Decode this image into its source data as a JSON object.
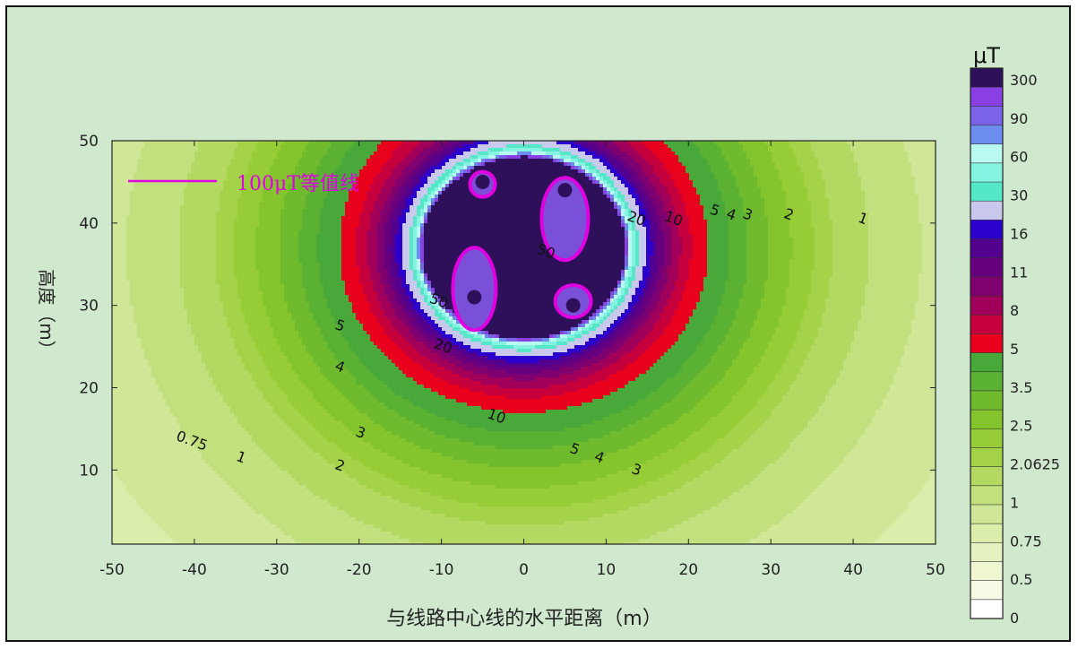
{
  "chart_data": {
    "type": "contour",
    "xlabel": "与线路中心线的水平距离（m）",
    "ylabel": "高度（m）",
    "xlim": [
      -50,
      50
    ],
    "ylim": [
      1,
      50
    ],
    "x_ticks": [
      "-50",
      "-40",
      "-30",
      "-20",
      "-10",
      "0",
      "10",
      "20",
      "30",
      "40",
      "50"
    ],
    "y_ticks": [
      "50",
      "40",
      "30",
      "20",
      "10"
    ],
    "legend_annotation": "100μT等值线",
    "annotation_color": "#e000e0",
    "colorbar": {
      "unit": "μT",
      "labels": [
        "300",
        "90",
        "60",
        "30",
        "16",
        "11",
        "8",
        "5",
        "3.5",
        "2.5",
        "2.0625",
        "1",
        "0.75",
        "0.5",
        "0"
      ]
    },
    "conductors": [
      {
        "x": -5,
        "y": 45
      },
      {
        "x": 5,
        "y": 44
      },
      {
        "x": -6,
        "y": 31
      },
      {
        "x": 6,
        "y": 30
      },
      {
        "x": -5,
        "y": 40
      },
      {
        "x": 0,
        "y": 37
      },
      {
        "x": 6,
        "y": 34
      }
    ],
    "contour_labels": [
      {
        "text": "1",
        "x": 41,
        "y": 40
      },
      {
        "text": "2",
        "x": 32,
        "y": 40.5
      },
      {
        "text": "3",
        "x": 27,
        "y": 40.5
      },
      {
        "text": "4",
        "x": 25,
        "y": 40.5
      },
      {
        "text": "5",
        "x": 23,
        "y": 41
      },
      {
        "text": "10",
        "x": 18,
        "y": 40
      },
      {
        "text": "20",
        "x": 13.5,
        "y": 40
      },
      {
        "text": "50",
        "x": 2.5,
        "y": 36
      },
      {
        "text": "50",
        "x": -10.5,
        "y": 30
      },
      {
        "text": "20",
        "x": -10,
        "y": 24.5
      },
      {
        "text": "10",
        "x": -3.5,
        "y": 16
      },
      {
        "text": "5",
        "x": 6,
        "y": 12
      },
      {
        "text": "4",
        "x": 9,
        "y": 11
      },
      {
        "text": "3",
        "x": 13.5,
        "y": 9.5
      },
      {
        "text": "5",
        "x": -22.5,
        "y": 27
      },
      {
        "text": "4",
        "x": -22.5,
        "y": 22
      },
      {
        "text": "3",
        "x": -20,
        "y": 14
      },
      {
        "text": "2",
        "x": -22.5,
        "y": 10
      },
      {
        "text": "1",
        "x": -34.5,
        "y": 11
      },
      {
        "text": "0.75",
        "x": -40.5,
        "y": 13
      }
    ]
  }
}
